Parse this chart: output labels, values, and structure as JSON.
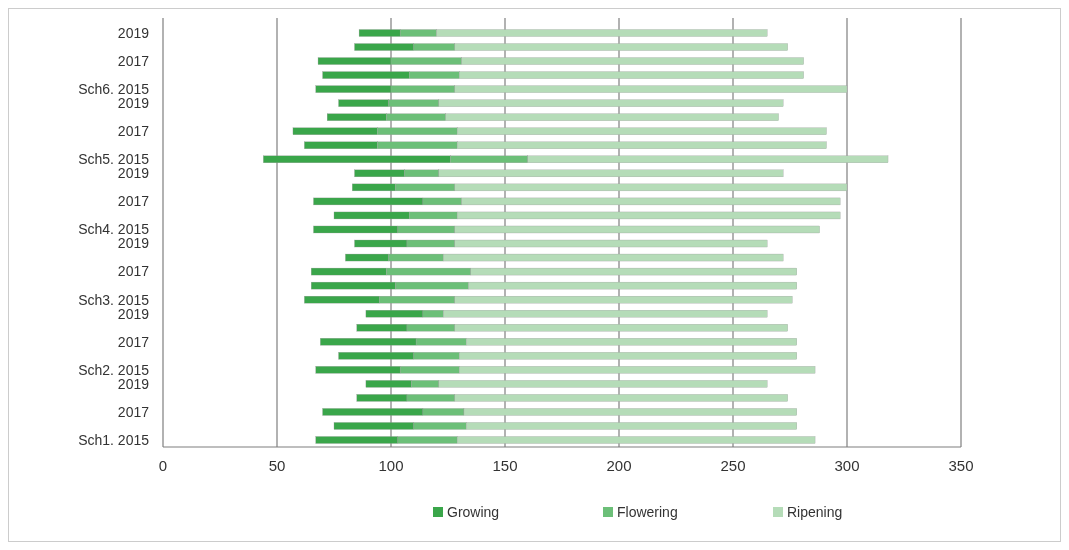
{
  "chart_data": {
    "type": "bar",
    "orientation": "horizontal",
    "categories": [
      "2019",
      null,
      "2017",
      null,
      "Sch6. 2015",
      "2019",
      null,
      "2017",
      null,
      "Sch5. 2015",
      "2019",
      null,
      "2017",
      null,
      "Sch4. 2015",
      "2019",
      null,
      "2017",
      null,
      "Sch3. 2015",
      "2019",
      null,
      "2017",
      null,
      "Sch2. 2015",
      "2019",
      null,
      "2017",
      null,
      "Sch1. 2015"
    ],
    "series": [
      {
        "name": "Growing",
        "color": "#3aa64a",
        "base": [
          86,
          84,
          68,
          70,
          67,
          77,
          72,
          57,
          62,
          44,
          84,
          83,
          66,
          75,
          66,
          84,
          80,
          65,
          65,
          62,
          89,
          85,
          69,
          77,
          67,
          89,
          85,
          70,
          75,
          67
        ],
        "values": [
          18,
          26,
          32,
          38,
          33,
          22,
          26,
          37,
          32,
          82,
          22,
          19,
          48,
          33,
          37,
          23,
          19,
          33,
          37,
          33,
          25,
          22,
          42,
          33,
          37,
          20,
          22,
          44,
          35,
          36
        ]
      },
      {
        "name": "Flowering",
        "color": "#6cbf78",
        "base": [
          104,
          110,
          100,
          108,
          100,
          99,
          98,
          94,
          94,
          126,
          106,
          102,
          114,
          108,
          103,
          107,
          99,
          98,
          102,
          95,
          114,
          107,
          111,
          110,
          104,
          109,
          107,
          114,
          110,
          103
        ],
        "values": [
          16,
          18,
          31,
          22,
          28,
          22,
          26,
          35,
          35,
          34,
          15,
          26,
          17,
          21,
          25,
          21,
          24,
          37,
          32,
          33,
          9,
          21,
          22,
          20,
          26,
          12,
          21,
          18,
          23,
          26
        ]
      },
      {
        "name": "Ripening",
        "color": "#b5dcb8",
        "base": [
          120,
          128,
          131,
          130,
          128,
          121,
          124,
          129,
          129,
          160,
          121,
          128,
          131,
          129,
          128,
          128,
          123,
          135,
          134,
          128,
          123,
          128,
          133,
          130,
          130,
          121,
          128,
          132,
          133,
          129
        ],
        "values": [
          145,
          146,
          150,
          151,
          172,
          151,
          146,
          162,
          162,
          158,
          151,
          172,
          166,
          168,
          160,
          137,
          149,
          143,
          144,
          148,
          142,
          146,
          145,
          148,
          156,
          144,
          146,
          146,
          145,
          157
        ]
      }
    ],
    "xlim": [
      0,
      350
    ],
    "xticks": [
      0,
      50,
      100,
      150,
      200,
      250,
      300,
      350
    ],
    "grid": "x",
    "legend": "bottom"
  }
}
